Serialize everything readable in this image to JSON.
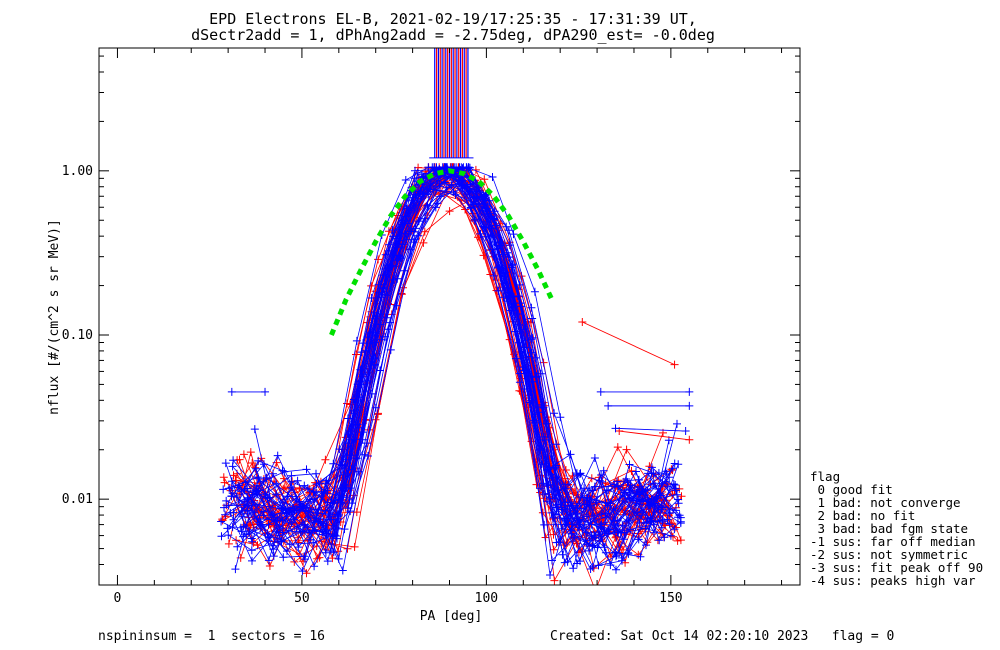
{
  "chart_data": {
    "type": "line",
    "title_line1": "EPD Electrons EL-B, 2021-02-19/17:25:35 - 17:31:39 UT,",
    "title_line2": "dSectr2add = 1, dPhAng2add = -2.75deg, dPA290_est=  -0.0deg",
    "xlabel": "PA [deg]",
    "ylabel": "nflux [#/(cm^2 s sr MeV)]",
    "xlim": [
      -5,
      185
    ],
    "ylim": [
      0.003,
      5.6
    ],
    "yscale": "log",
    "x_ticks": [
      0,
      50,
      100,
      150
    ],
    "y_ticks": [
      {
        "value": 0.01,
        "label": "0.01"
      },
      {
        "value": 0.1,
        "label": "0.10"
      },
      {
        "value": 1.0,
        "label": "1.00"
      }
    ],
    "series": [
      {
        "color": "#ff0000",
        "marker": "+"
      },
      {
        "color": "#0000ff",
        "marker": "+"
      },
      {
        "color": "#00e000",
        "style": "dashed"
      }
    ],
    "fit_curve": {
      "x": [
        58,
        62,
        66,
        70,
        74,
        78,
        82,
        86,
        90,
        94,
        98,
        102,
        106,
        110,
        114,
        118
      ],
      "y": [
        0.1,
        0.165,
        0.25,
        0.37,
        0.53,
        0.7,
        0.86,
        0.96,
        1.0,
        0.96,
        0.86,
        0.7,
        0.53,
        0.37,
        0.25,
        0.16
      ]
    },
    "peak_bars_x_range": [
      86,
      95
    ],
    "legend_title": "flag",
    "legend": [
      " 0 good fit",
      " 1 bad: not converge",
      " 2 bad: no fit",
      " 3 bad: bad fgm state",
      "-1 sus: far off median",
      "-2 sus: not symmetric",
      "-3 sus: fit peak off 90",
      "-4 sus: peaks high var"
    ],
    "legend_placement": "bottom-right outside plot"
  },
  "footer": {
    "left": "nspininsum =  1  sectors = 16",
    "right": "Created: Sat Oct 14 02:20:10 2023   flag = 0"
  },
  "colors": {
    "red": "#ff0000",
    "blue": "#0000ff",
    "green": "#00e000",
    "axis": "#000000"
  }
}
